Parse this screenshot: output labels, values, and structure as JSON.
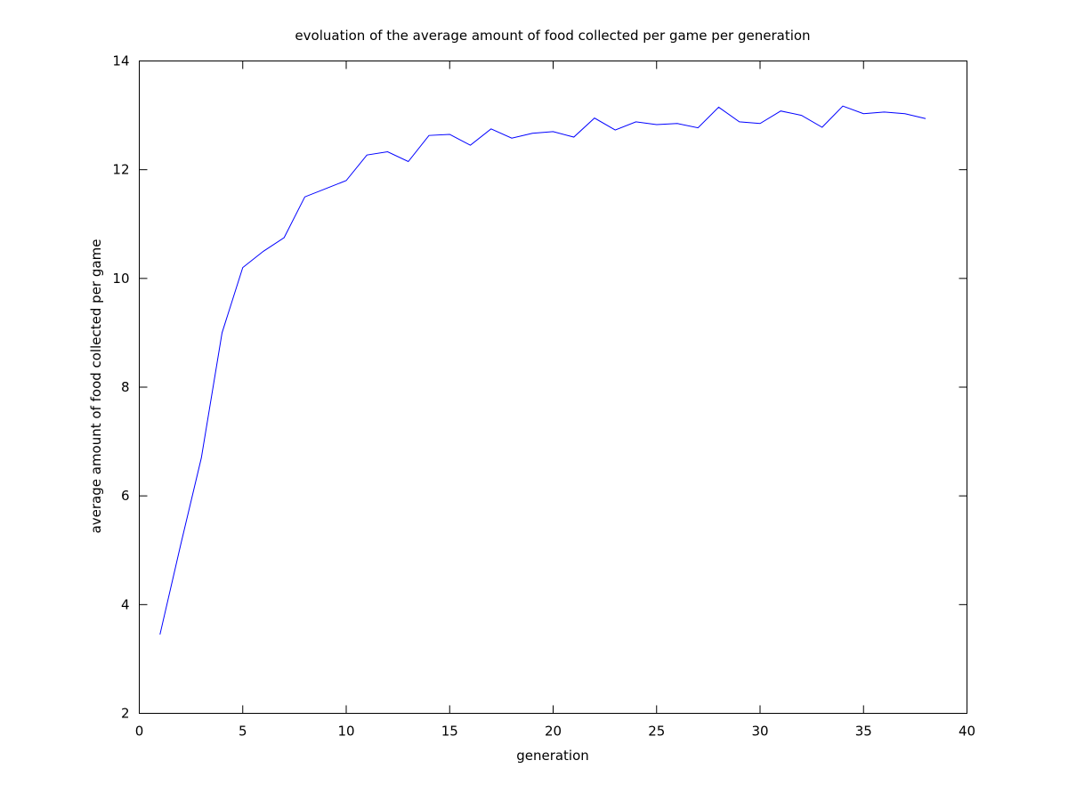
{
  "chart_data": {
    "type": "line",
    "title": "evoluation of the average amount of food collected per game per generation",
    "xlabel": "generation",
    "ylabel": "average amount of food collected per game",
    "xlim": [
      0,
      40
    ],
    "ylim": [
      2,
      14
    ],
    "xticks": [
      0,
      5,
      10,
      15,
      20,
      25,
      30,
      35,
      40
    ],
    "yticks": [
      2,
      4,
      6,
      8,
      10,
      12,
      14
    ],
    "grid": false,
    "series": [
      {
        "color": "#0000ff",
        "x": [
          1,
          2,
          3,
          4,
          5,
          6,
          7,
          8,
          9,
          10,
          11,
          12,
          13,
          14,
          15,
          16,
          17,
          18,
          19,
          20,
          21,
          22,
          23,
          24,
          25,
          26,
          27,
          28,
          29,
          30,
          31,
          32,
          33,
          34,
          35,
          36,
          37,
          38
        ],
        "y": [
          3.45,
          5.1,
          6.7,
          9.0,
          10.2,
          10.5,
          10.75,
          11.5,
          11.65,
          11.8,
          12.27,
          12.33,
          12.15,
          12.63,
          12.65,
          12.45,
          12.75,
          12.58,
          12.67,
          12.7,
          12.6,
          12.95,
          12.73,
          12.88,
          12.83,
          12.85,
          12.77,
          13.15,
          12.88,
          12.85,
          13.08,
          13.0,
          12.78,
          13.17,
          13.03,
          13.06,
          13.03,
          12.94
        ]
      }
    ]
  }
}
